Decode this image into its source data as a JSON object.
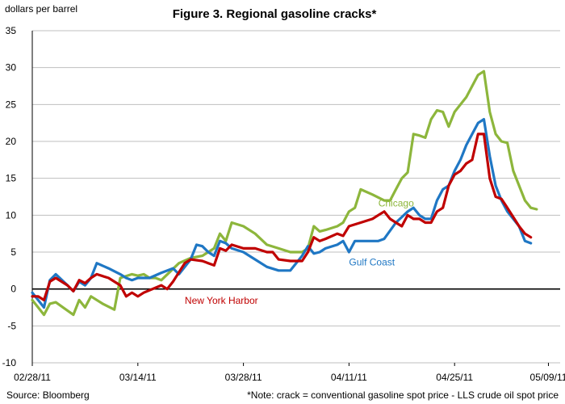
{
  "chart_data": {
    "type": "line",
    "title": "Figure 3. Regional gasoline cracks*",
    "ylabel": "dollars per barrel",
    "source": "Source: Bloomberg",
    "note": "*Note: crack = conventional gasoline spot price - LLS crude oil spot price",
    "ylim": [
      -10,
      35
    ],
    "yticks": [
      "-10",
      "-5",
      "0",
      "5",
      "10",
      "15",
      "20",
      "25",
      "30",
      "35"
    ],
    "xlim": [
      0,
      90
    ],
    "xticks": [
      {
        "x": 0,
        "label": "02/28/11"
      },
      {
        "x": 18,
        "label": "03/14/11"
      },
      {
        "x": 36,
        "label": "03/28/11"
      },
      {
        "x": 54,
        "label": "04/11/11"
      },
      {
        "x": 72,
        "label": "04/25/11"
      },
      {
        "x": 88,
        "label": "05/09/11"
      }
    ],
    "grid": true,
    "series": [
      {
        "name": "Chicago",
        "color": "#8DB63C",
        "points": [
          [
            0,
            -1.5
          ],
          [
            1,
            -2.5
          ],
          [
            2,
            -3.5
          ],
          [
            3,
            -2
          ],
          [
            4,
            -1.8
          ],
          [
            7,
            -3.5
          ],
          [
            8,
            -1.5
          ],
          [
            9,
            -2.5
          ],
          [
            10,
            -1
          ],
          [
            12,
            -2
          ],
          [
            14,
            -2.8
          ],
          [
            15,
            1.5
          ],
          [
            17,
            2
          ],
          [
            18,
            1.8
          ],
          [
            19,
            2
          ],
          [
            20,
            1.5
          ],
          [
            21,
            1.5
          ],
          [
            22,
            1.2
          ],
          [
            25,
            3.5
          ],
          [
            27,
            4.2
          ],
          [
            29,
            4.5
          ],
          [
            30,
            5
          ],
          [
            31,
            5.5
          ],
          [
            32,
            7.5
          ],
          [
            33,
            6.5
          ],
          [
            34,
            9
          ],
          [
            36,
            8.5
          ],
          [
            38,
            7.5
          ],
          [
            40,
            6
          ],
          [
            42,
            5.5
          ],
          [
            44,
            5
          ],
          [
            46,
            5
          ],
          [
            47,
            5.5
          ],
          [
            48,
            8.5
          ],
          [
            49,
            7.8
          ],
          [
            50,
            8
          ],
          [
            52,
            8.5
          ],
          [
            53,
            9
          ],
          [
            54,
            10.5
          ],
          [
            55,
            11
          ],
          [
            56,
            13.5
          ],
          [
            58,
            12.8
          ],
          [
            60,
            12
          ],
          [
            61,
            12
          ],
          [
            62,
            13.5
          ],
          [
            63,
            15
          ],
          [
            64,
            15.8
          ],
          [
            65,
            21
          ],
          [
            66,
            20.8
          ],
          [
            67,
            20.5
          ],
          [
            68,
            23
          ],
          [
            69,
            24.2
          ],
          [
            70,
            24
          ],
          [
            71,
            22
          ],
          [
            72,
            24
          ],
          [
            74,
            26
          ],
          [
            76,
            29
          ],
          [
            77,
            29.5
          ],
          [
            78,
            24
          ],
          [
            79,
            21
          ],
          [
            80,
            20
          ],
          [
            81,
            19.8
          ],
          [
            82,
            16
          ],
          [
            84,
            12
          ],
          [
            85,
            11
          ],
          [
            86,
            10.8
          ]
        ]
      },
      {
        "name": "Gulf Coast",
        "color": "#1F77C4",
        "points": [
          [
            0,
            -0.5
          ],
          [
            1,
            -1.5
          ],
          [
            2,
            -2.5
          ],
          [
            3,
            1.2
          ],
          [
            4,
            2
          ],
          [
            6,
            0.5
          ],
          [
            7,
            -0.3
          ],
          [
            8,
            1
          ],
          [
            9,
            0.5
          ],
          [
            10,
            1.5
          ],
          [
            11,
            3.5
          ],
          [
            13,
            2.8
          ],
          [
            15,
            2
          ],
          [
            16,
            1.5
          ],
          [
            17,
            1.2
          ],
          [
            18,
            1.5
          ],
          [
            20,
            1.5
          ],
          [
            22,
            2.2
          ],
          [
            24,
            2.8
          ],
          [
            25,
            2
          ],
          [
            27,
            4
          ],
          [
            28,
            6
          ],
          [
            29,
            5.8
          ],
          [
            30,
            5
          ],
          [
            31,
            4.5
          ],
          [
            32,
            6.5
          ],
          [
            33,
            6.2
          ],
          [
            34,
            5.5
          ],
          [
            36,
            5
          ],
          [
            37,
            4.5
          ],
          [
            38,
            4
          ],
          [
            40,
            3
          ],
          [
            42,
            2.5
          ],
          [
            44,
            2.5
          ],
          [
            46,
            4.5
          ],
          [
            47,
            5.8
          ],
          [
            48,
            4.8
          ],
          [
            49,
            5
          ],
          [
            50,
            5.5
          ],
          [
            52,
            6
          ],
          [
            53,
            6.5
          ],
          [
            54,
            5
          ],
          [
            55,
            6.5
          ],
          [
            57,
            6.5
          ],
          [
            59,
            6.5
          ],
          [
            60,
            6.8
          ],
          [
            62,
            9
          ],
          [
            64,
            10.5
          ],
          [
            65,
            11
          ],
          [
            66,
            10
          ],
          [
            67,
            9.5
          ],
          [
            68,
            9.5
          ],
          [
            69,
            12
          ],
          [
            70,
            13.5
          ],
          [
            71,
            14
          ],
          [
            72,
            16
          ],
          [
            73,
            17.5
          ],
          [
            74,
            19.5
          ],
          [
            75,
            21
          ],
          [
            76,
            22.5
          ],
          [
            77,
            23
          ],
          [
            78,
            18
          ],
          [
            79,
            14
          ],
          [
            80,
            12
          ],
          [
            81,
            10.5
          ],
          [
            83,
            8.5
          ],
          [
            84,
            6.5
          ],
          [
            85,
            6.2
          ]
        ]
      },
      {
        "name": "New York Harbor",
        "color": "#C00000",
        "points": [
          [
            0,
            -1
          ],
          [
            1,
            -1
          ],
          [
            2,
            -1.5
          ],
          [
            3,
            1
          ],
          [
            4,
            1.5
          ],
          [
            6,
            0.5
          ],
          [
            7,
            -0.3
          ],
          [
            8,
            1.2
          ],
          [
            9,
            0.8
          ],
          [
            10,
            1.5
          ],
          [
            11,
            2
          ],
          [
            13,
            1.5
          ],
          [
            15,
            0.5
          ],
          [
            16,
            -1
          ],
          [
            17,
            -0.5
          ],
          [
            18,
            -1
          ],
          [
            19,
            -0.5
          ],
          [
            22,
            0.5
          ],
          [
            23,
            0
          ],
          [
            24,
            1
          ],
          [
            26,
            3.5
          ],
          [
            27,
            4
          ],
          [
            29,
            3.8
          ],
          [
            30,
            3.5
          ],
          [
            31,
            3.2
          ],
          [
            32,
            5.5
          ],
          [
            33,
            5.2
          ],
          [
            34,
            6
          ],
          [
            36,
            5.5
          ],
          [
            38,
            5.5
          ],
          [
            40,
            5
          ],
          [
            41,
            5
          ],
          [
            42,
            4
          ],
          [
            44,
            3.8
          ],
          [
            46,
            3.8
          ],
          [
            47,
            5
          ],
          [
            48,
            7
          ],
          [
            49,
            6.5
          ],
          [
            50,
            6.8
          ],
          [
            52,
            7.5
          ],
          [
            53,
            7.2
          ],
          [
            54,
            8.5
          ],
          [
            56,
            9
          ],
          [
            58,
            9.5
          ],
          [
            59,
            10
          ],
          [
            60,
            10.5
          ],
          [
            61,
            9.5
          ],
          [
            62,
            9
          ],
          [
            63,
            8.5
          ],
          [
            64,
            10
          ],
          [
            65,
            9.5
          ],
          [
            66,
            9.5
          ],
          [
            67,
            9
          ],
          [
            68,
            9
          ],
          [
            69,
            10.5
          ],
          [
            70,
            11
          ],
          [
            71,
            14
          ],
          [
            72,
            15.5
          ],
          [
            73,
            16
          ],
          [
            74,
            17
          ],
          [
            75,
            17.5
          ],
          [
            76,
            21
          ],
          [
            77,
            21
          ],
          [
            78,
            15
          ],
          [
            79,
            12.5
          ],
          [
            80,
            12.2
          ],
          [
            81,
            11
          ],
          [
            83,
            8.5
          ],
          [
            84,
            7.5
          ],
          [
            85,
            7
          ]
        ]
      }
    ],
    "annotations": [
      {
        "text": "Chicago",
        "x": 59,
        "y": 11.2,
        "color": "#8DB63C"
      },
      {
        "text": "Gulf Coast",
        "x": 54,
        "y": 3.2,
        "color": "#1F77C4"
      },
      {
        "text": "New York Harbor",
        "x": 26,
        "y": -2,
        "color": "#C00000"
      }
    ]
  }
}
